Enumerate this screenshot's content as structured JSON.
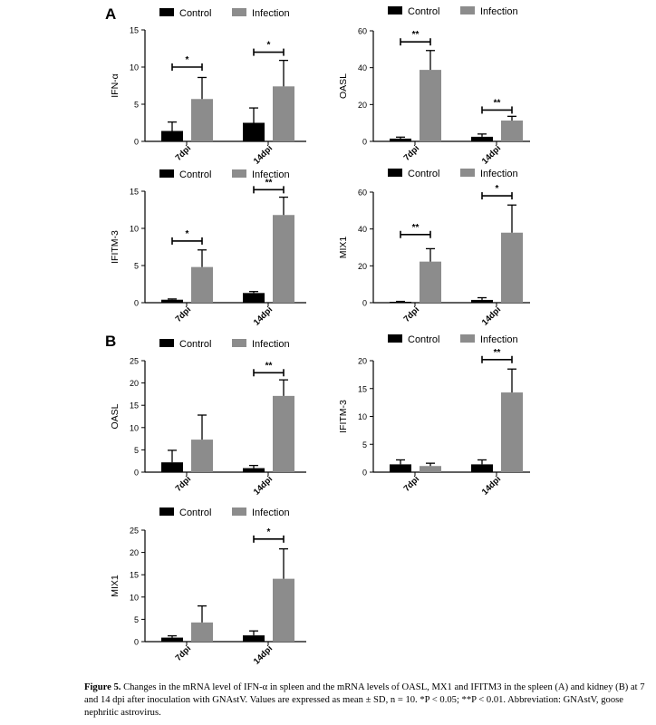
{
  "panels": [
    "A",
    "B"
  ],
  "legend": {
    "control": "Control",
    "infection": "Infection"
  },
  "colors": {
    "control": "#000000",
    "infection": "#8c8c8c"
  },
  "chart_data": [
    {
      "type": "bar",
      "panel": "A",
      "ylabel": "IFN-α",
      "categories": [
        "7dpi",
        "14dpi"
      ],
      "ylim": [
        0,
        15
      ],
      "yticks": [
        0,
        5,
        10,
        15
      ],
      "series": [
        {
          "name": "Control",
          "values": [
            1.4,
            2.5
          ],
          "errors": [
            1.2,
            2.0
          ]
        },
        {
          "name": "Infection",
          "values": [
            5.7,
            7.4
          ],
          "errors": [
            2.9,
            3.5
          ]
        }
      ],
      "significance": [
        "*",
        "*"
      ],
      "sig_y": [
        10,
        12
      ]
    },
    {
      "type": "bar",
      "panel": "A",
      "ylabel": "OASL",
      "categories": [
        "7dpi",
        "14dpi"
      ],
      "ylim": [
        0,
        60
      ],
      "yticks": [
        0,
        20,
        40,
        60
      ],
      "series": [
        {
          "name": "Control",
          "values": [
            1.5,
            2.5
          ],
          "errors": [
            0.8,
            1.5
          ]
        },
        {
          "name": "Infection",
          "values": [
            38.8,
            11.3
          ],
          "errors": [
            10.5,
            2.3
          ]
        }
      ],
      "significance": [
        "**",
        "**"
      ],
      "sig_y": [
        54,
        17
      ]
    },
    {
      "type": "bar",
      "panel": "A",
      "ylabel": "IFITM-3",
      "categories": [
        "7dpi",
        "14dpi"
      ],
      "ylim": [
        0,
        15
      ],
      "yticks": [
        0,
        5,
        10,
        15
      ],
      "series": [
        {
          "name": "Control",
          "values": [
            0.4,
            1.3
          ],
          "errors": [
            0.1,
            0.2
          ]
        },
        {
          "name": "Infection",
          "values": [
            4.8,
            11.8
          ],
          "errors": [
            2.3,
            2.4
          ]
        }
      ],
      "significance": [
        "*",
        "**"
      ],
      "sig_y": [
        8.3,
        15.2
      ]
    },
    {
      "type": "bar",
      "panel": "A",
      "ylabel": "MIX1",
      "categories": [
        "7dpi",
        "14dpi"
      ],
      "ylim": [
        0,
        60
      ],
      "yticks": [
        0,
        20,
        40,
        60
      ],
      "series": [
        {
          "name": "Control",
          "values": [
            0.5,
            1.5
          ],
          "errors": [
            0.2,
            1.2
          ]
        },
        {
          "name": "Infection",
          "values": [
            22.3,
            38.0
          ],
          "errors": [
            7.0,
            15.0
          ]
        }
      ],
      "significance": [
        "**",
        "*"
      ],
      "sig_y": [
        37,
        58
      ]
    },
    {
      "type": "bar",
      "panel": "B",
      "ylabel": "OASL",
      "categories": [
        "7dpi",
        "14dpi"
      ],
      "ylim": [
        0,
        25
      ],
      "yticks": [
        0,
        5,
        10,
        15,
        20,
        25
      ],
      "series": [
        {
          "name": "Control",
          "values": [
            2.2,
            0.9
          ],
          "errors": [
            2.7,
            0.6
          ]
        },
        {
          "name": "Infection",
          "values": [
            7.3,
            17.1
          ],
          "errors": [
            5.5,
            3.6
          ]
        }
      ],
      "significance": [
        "",
        "**"
      ],
      "sig_y": [
        0,
        22.3
      ]
    },
    {
      "type": "bar",
      "panel": "B",
      "ylabel": "IFITM-3",
      "categories": [
        "7dpi",
        "14dpi"
      ],
      "ylim": [
        0,
        20
      ],
      "yticks": [
        0,
        5,
        10,
        15,
        20
      ],
      "series": [
        {
          "name": "Control",
          "values": [
            1.4,
            1.4
          ],
          "errors": [
            0.8,
            0.8
          ]
        },
        {
          "name": "Infection",
          "values": [
            1.1,
            14.3
          ],
          "errors": [
            0.5,
            4.2
          ]
        }
      ],
      "significance": [
        "",
        "**"
      ],
      "sig_y": [
        0,
        20.2
      ]
    },
    {
      "type": "bar",
      "panel": "B",
      "ylabel": "MIX1",
      "categories": [
        "7dpi",
        "14dpi"
      ],
      "ylim": [
        0,
        25
      ],
      "yticks": [
        0,
        5,
        10,
        15,
        20,
        25
      ],
      "series": [
        {
          "name": "Control",
          "values": [
            0.9,
            1.4
          ],
          "errors": [
            0.4,
            1.0
          ]
        },
        {
          "name": "Infection",
          "values": [
            4.3,
            14.1
          ],
          "errors": [
            3.7,
            6.7
          ]
        }
      ],
      "significance": [
        "",
        "*"
      ],
      "sig_y": [
        0,
        23
      ]
    }
  ],
  "caption": {
    "label": "Figure 5.",
    "text": " Changes in the mRNA level of IFN-α in spleen and the mRNA levels of OASL, MX1 and IFITM3 in the spleen (A) and kidney (B) at 7 and 14 dpi after inoculation with GNAstV. Values are expressed as mean ± SD, n = 10. *P < 0.05; **P < 0.01. Abbreviation: GNAstV, goose nephritic astrovirus."
  }
}
